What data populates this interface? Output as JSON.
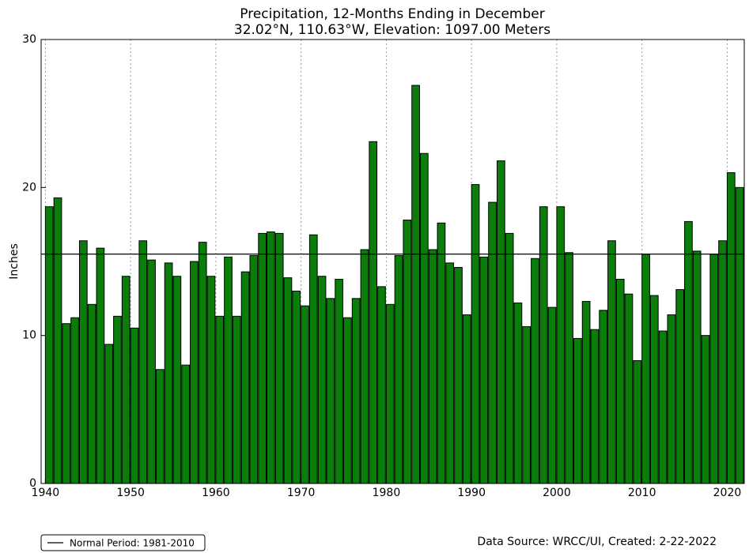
{
  "chart_data": {
    "type": "bar",
    "title": "Precipitation, 12-Months Ending in December",
    "subtitle": "32.02°N, 110.63°W, Elevation: 1097.00 Meters",
    "y_label": "Inches",
    "color": "#0a7d0a",
    "x": [
      1940,
      1941,
      1942,
      1943,
      1944,
      1945,
      1946,
      1947,
      1948,
      1949,
      1950,
      1951,
      1952,
      1953,
      1954,
      1955,
      1956,
      1957,
      1958,
      1959,
      1960,
      1961,
      1962,
      1963,
      1964,
      1965,
      1966,
      1967,
      1968,
      1969,
      1970,
      1971,
      1972,
      1973,
      1974,
      1975,
      1976,
      1977,
      1978,
      1979,
      1980,
      1981,
      1982,
      1983,
      1984,
      1985,
      1986,
      1987,
      1988,
      1989,
      1990,
      1991,
      1992,
      1993,
      1994,
      1995,
      1996,
      1997,
      1998,
      1999,
      2000,
      2001,
      2002,
      2003,
      2004,
      2005,
      2006,
      2007,
      2008,
      2009,
      2010,
      2011,
      2012,
      2013,
      2014,
      2015,
      2016,
      2017,
      2018,
      2019,
      2020,
      2021
    ],
    "values": [
      18.7,
      19.3,
      10.8,
      11.2,
      16.4,
      12.1,
      15.9,
      9.4,
      11.3,
      14.0,
      10.5,
      16.4,
      15.1,
      7.7,
      14.9,
      14.0,
      8.0,
      15.0,
      16.3,
      14.0,
      11.3,
      15.3,
      11.3,
      14.3,
      15.4,
      16.9,
      17.0,
      16.9,
      13.9,
      13.0,
      12.0,
      16.8,
      14.0,
      12.5,
      13.8,
      11.2,
      12.5,
      15.8,
      23.1,
      13.3,
      12.1,
      15.4,
      17.8,
      26.9,
      22.3,
      15.8,
      17.6,
      14.9,
      14.6,
      11.4,
      20.2,
      15.3,
      19.0,
      21.8,
      16.9,
      12.2,
      10.6,
      15.2,
      18.7,
      11.9,
      18.7,
      15.6,
      9.8,
      12.3,
      10.4,
      11.7,
      16.4,
      13.8,
      12.8,
      8.3,
      15.5,
      12.7,
      10.3,
      11.4,
      13.1,
      17.7,
      15.7,
      10.0,
      15.5,
      16.4,
      21.0,
      20.0
    ],
    "bar_width": 0.9,
    "xlim": [
      1939.5,
      2022
    ],
    "xticks": [
      1940,
      1950,
      1960,
      1970,
      1980,
      1990,
      2000,
      2010,
      2020
    ],
    "ylim": [
      0,
      30
    ],
    "yticks": [
      0,
      10,
      20,
      30
    ],
    "grid": "x",
    "reference_line": {
      "name": "Normal Period: 1981-2010",
      "value": 15.5,
      "color": "#000000"
    },
    "legend": "bottom-left",
    "source": "Data Source: WRCC/UI, Created: 2-22-2022"
  }
}
